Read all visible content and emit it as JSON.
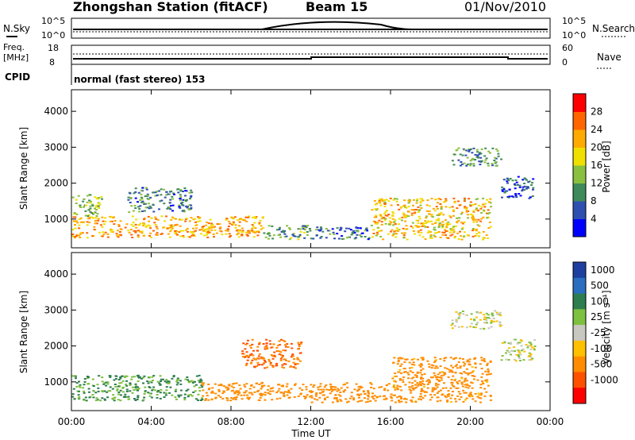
{
  "header": {
    "station": "Zhongshan Station (fitACF)",
    "beam": "Beam 15",
    "date": "01/Nov/2010"
  },
  "summary": {
    "nsky_label": "N.Sky",
    "nsearch_label": "N.Search",
    "noise_ticks": [
      "10^5",
      "10^0"
    ],
    "freq_label_1": "Freq.",
    "freq_label_2": "[MHz]",
    "freq_ticks": [
      "18",
      "8"
    ],
    "nave_label": "Nave",
    "nave_ticks": [
      "60",
      "0"
    ],
    "cpid_label": "CPID",
    "cpid_text": "normal (fast stereo) 153"
  },
  "colors": {
    "power_scale": [
      "#0000ff",
      "#2f4fb0",
      "#3f8a5a",
      "#8ac040",
      "#f0e000",
      "#ffaa00",
      "#ff6600",
      "#ff0000"
    ],
    "velocity_scale": [
      "#1f3fa0",
      "#2a6ec0",
      "#2e7d4f",
      "#7ec040",
      "#c8c8c0",
      "#ffc000",
      "#ff8c00",
      "#ff5000",
      "#ff0000"
    ]
  },
  "chart_data": [
    {
      "type": "heatmap",
      "name": "power",
      "ylabel": "Slant Range [km]",
      "yticks": [
        1000,
        2000,
        3000,
        4000
      ],
      "ylim": [
        200,
        4600
      ],
      "xlim": [
        0,
        24
      ],
      "colorbar_label": "Power [dB]",
      "colorbar_ticks": [
        "4",
        "8",
        "12",
        "16",
        "20",
        "24",
        "28"
      ],
      "colorbar_range": [
        0,
        32
      ],
      "regions": [
        {
          "t0": 0.0,
          "t1": 9.6,
          "r0": 500,
          "r1": 1100,
          "value": 22
        },
        {
          "t0": 0.0,
          "t1": 1.5,
          "r0": 1100,
          "r1": 1700,
          "value": 14
        },
        {
          "t0": 2.8,
          "t1": 6.0,
          "r0": 1200,
          "r1": 1900,
          "value": 9
        },
        {
          "t0": 9.6,
          "t1": 12.0,
          "r0": 450,
          "r1": 850,
          "value": 11
        },
        {
          "t0": 12.0,
          "t1": 15.0,
          "r0": 450,
          "r1": 800,
          "value": 8
        },
        {
          "t0": 15.0,
          "t1": 21.0,
          "r0": 450,
          "r1": 1600,
          "value": 20
        },
        {
          "t0": 19.0,
          "t1": 21.5,
          "r0": 2500,
          "r1": 3000,
          "value": 10
        },
        {
          "t0": 21.5,
          "t1": 23.2,
          "r0": 1600,
          "r1": 2200,
          "value": 6
        }
      ]
    },
    {
      "type": "heatmap",
      "name": "velocity",
      "ylabel": "Slant Range [km]",
      "yticks": [
        1000,
        2000,
        3000,
        4000
      ],
      "ylim": [
        200,
        4600
      ],
      "xlim": [
        0,
        24
      ],
      "colorbar_label": "Velocity [m s⁻¹]",
      "colorbar_ticks": [
        "1000",
        "500",
        "100",
        "25",
        "-25",
        "-100",
        "-500",
        "-1000"
      ],
      "regions": [
        {
          "t0": 0.0,
          "t1": 6.5,
          "r0": 500,
          "r1": 1200,
          "value": 100
        },
        {
          "t0": 6.5,
          "t1": 12.0,
          "r0": 500,
          "r1": 1000,
          "value": -300
        },
        {
          "t0": 8.5,
          "t1": 11.5,
          "r0": 1400,
          "r1": 2200,
          "value": -500
        },
        {
          "t0": 12.0,
          "t1": 16.0,
          "r0": 450,
          "r1": 1000,
          "value": -300
        },
        {
          "t0": 16.0,
          "t1": 21.0,
          "r0": 450,
          "r1": 1700,
          "value": -200
        },
        {
          "t0": 19.0,
          "t1": 21.5,
          "r0": 2500,
          "r1": 3000,
          "value": 0
        },
        {
          "t0": 21.5,
          "t1": 23.2,
          "r0": 1600,
          "r1": 2200,
          "value": 0
        }
      ]
    }
  ],
  "xaxis": {
    "label": "Time UT",
    "ticks": [
      "00:00",
      "04:00",
      "08:00",
      "12:00",
      "16:00",
      "20:00",
      "00:00"
    ]
  }
}
